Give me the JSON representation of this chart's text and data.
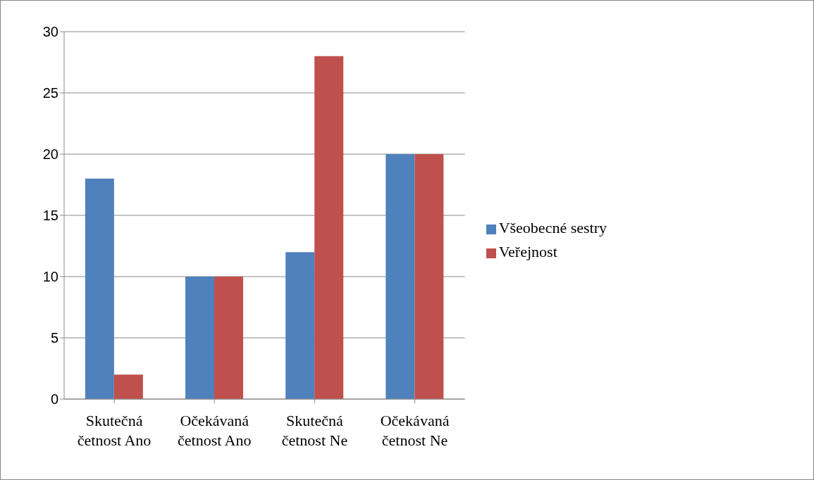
{
  "chart_data": {
    "type": "bar",
    "categories": [
      "Skutečná četnost Ano",
      "Očekávaná četnost Ano",
      "Skutečná četnost Ne",
      "Očekávaná četnost Ne"
    ],
    "series": [
      {
        "name": "Všeobecné sestry",
        "color": "#4f81bd",
        "values": [
          18,
          10,
          12,
          20
        ]
      },
      {
        "name": "Veřejnost",
        "color": "#c0504d",
        "values": [
          2,
          10,
          28,
          20
        ]
      }
    ],
    "ylim": [
      0,
      30
    ],
    "yticks": [
      0,
      5,
      10,
      15,
      20,
      25,
      30
    ],
    "grid": "y",
    "legend": "right"
  }
}
